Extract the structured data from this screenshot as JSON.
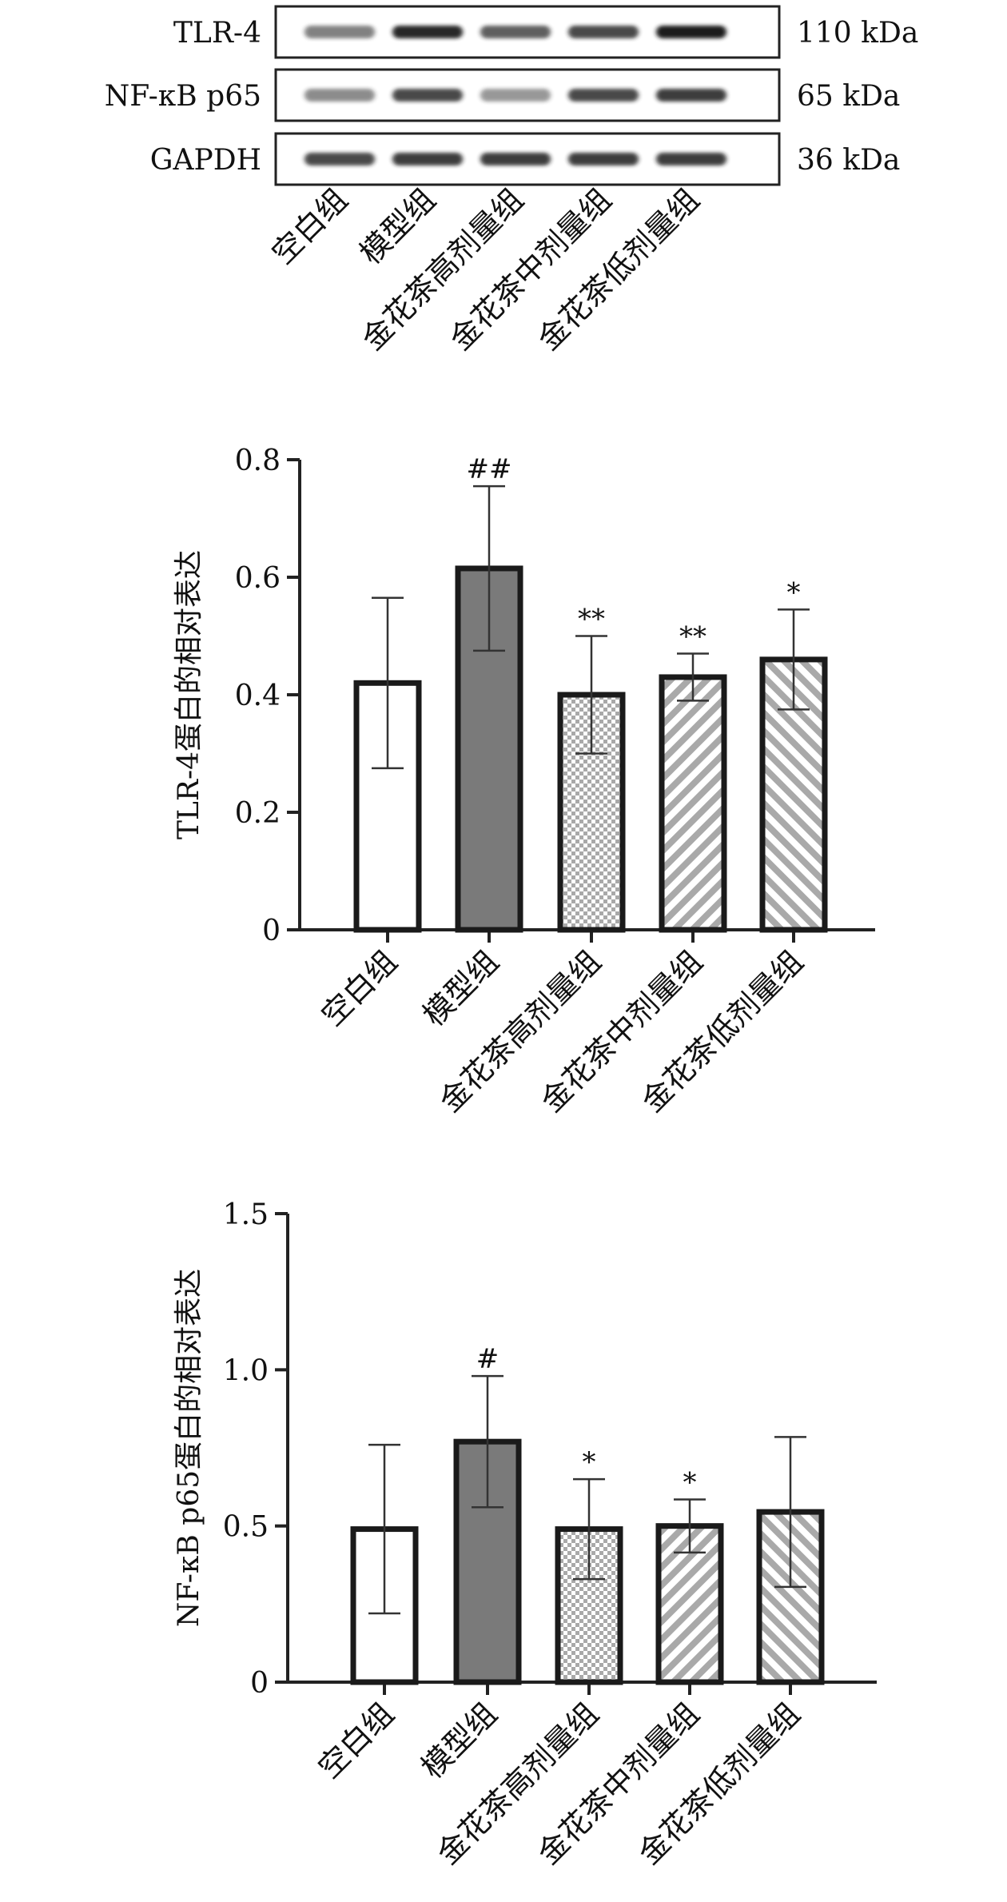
{
  "groups": [
    "空白组",
    "模型组",
    "金花茶高剂量组",
    "金花茶中剂量组",
    "金花茶低剂量组"
  ],
  "western_blot": {
    "rows": [
      {
        "protein": "TLR-4",
        "mw": "110 kDa",
        "intensity": [
          0.55,
          0.95,
          0.7,
          0.8,
          1.0
        ]
      },
      {
        "protein": "NF-κB p65",
        "mw": "65 kDa",
        "intensity": [
          0.5,
          0.8,
          0.45,
          0.8,
          0.85
        ]
      },
      {
        "protein": "GAPDH",
        "mw": "36 kDa",
        "intensity": [
          0.8,
          0.85,
          0.85,
          0.85,
          0.85
        ]
      }
    ]
  },
  "colors": {
    "axis": "#222222",
    "blank_fill": "#ffffff",
    "model_fill": "#7a7a7a",
    "pattern_color": "#a9a9a9",
    "band": "#1a1a1a"
  },
  "chart_data": [
    {
      "type": "bar",
      "ylabel": "TLR-4蛋白的相对表达",
      "categories": [
        "空白组",
        "模型组",
        "金花茶高剂量组",
        "金花茶中剂量组",
        "金花茶低剂量组"
      ],
      "values": [
        0.42,
        0.615,
        0.4,
        0.43,
        0.46
      ],
      "errors": [
        0.145,
        0.14,
        0.1,
        0.04,
        0.085
      ],
      "annotations": [
        "",
        "##",
        "**",
        "**",
        "*"
      ],
      "patterns": [
        "none",
        "solid",
        "checker",
        "diag-right",
        "diag-left"
      ],
      "ylim": [
        0,
        0.8
      ],
      "yticks": [
        "0",
        "0.2",
        "0.4",
        "0.6",
        "0.8"
      ],
      "ytick_values": [
        0,
        0.2,
        0.4,
        0.6,
        0.8
      ]
    },
    {
      "type": "bar",
      "ylabel": "NF-κB p65蛋白的相对表达",
      "categories": [
        "空白组",
        "模型组",
        "金花茶高剂量组",
        "金花茶中剂量组",
        "金花茶低剂量组"
      ],
      "values": [
        0.49,
        0.77,
        0.49,
        0.5,
        0.545
      ],
      "errors": [
        0.27,
        0.21,
        0.16,
        0.085,
        0.24
      ],
      "annotations": [
        "",
        "#",
        "*",
        "*",
        ""
      ],
      "patterns": [
        "none",
        "solid",
        "checker",
        "diag-right",
        "diag-left"
      ],
      "ylim": [
        0,
        1.5
      ],
      "yticks": [
        "0",
        "0.5",
        "1.0",
        "1.5"
      ],
      "ytick_values": [
        0,
        0.5,
        1.0,
        1.5
      ]
    }
  ]
}
